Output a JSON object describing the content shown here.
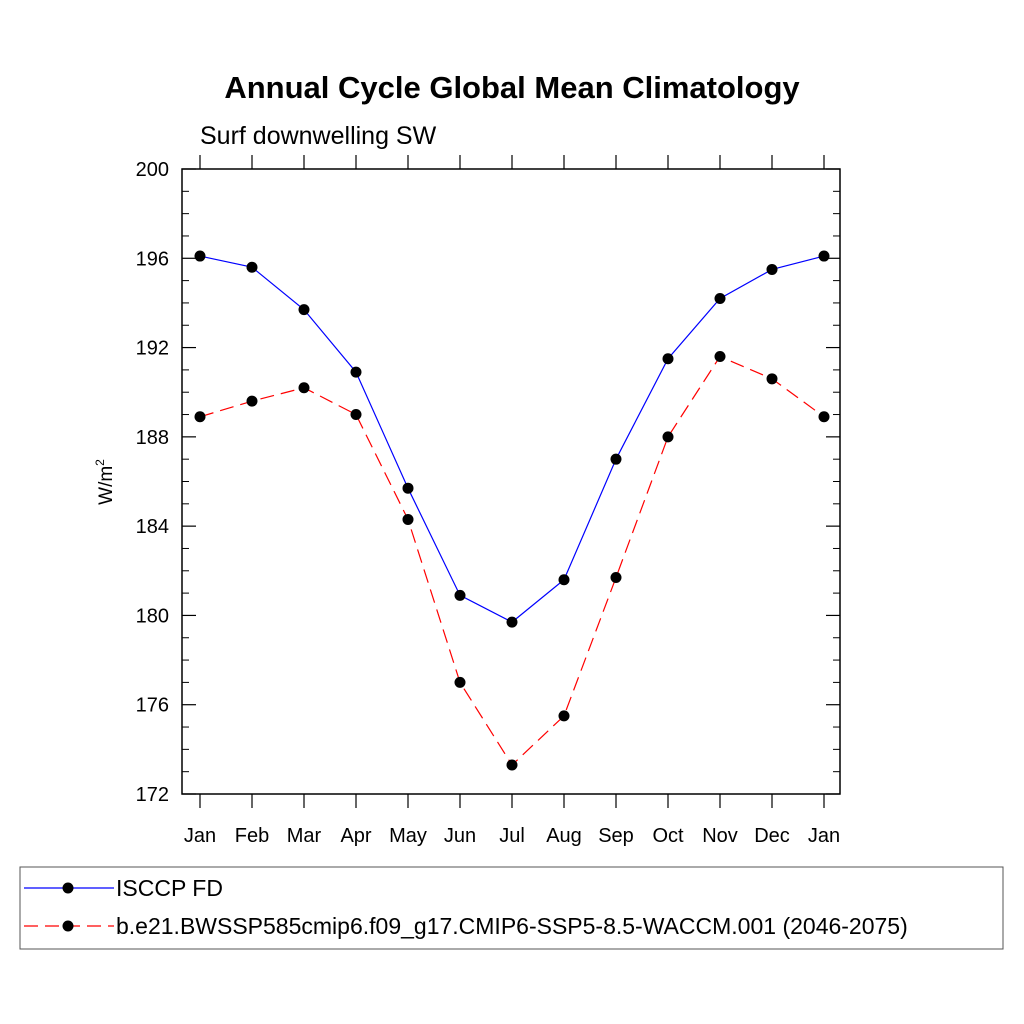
{
  "chart_data": {
    "type": "line",
    "title": "Annual Cycle Global Mean Climatology",
    "subtitle": "Surf downwelling SW",
    "ylabel_base": "W/m",
    "ylabel_sup": "2",
    "xlabel": "",
    "categories": [
      "Jan",
      "Feb",
      "Mar",
      "Apr",
      "May",
      "Jun",
      "Jul",
      "Aug",
      "Sep",
      "Oct",
      "Nov",
      "Dec",
      "Jan"
    ],
    "ylim": [
      172,
      200
    ],
    "yticks": [
      172,
      176,
      180,
      184,
      188,
      192,
      196,
      200
    ],
    "legend_position": "bottom",
    "series": [
      {
        "name": "ISCCP FD",
        "color": "#0000ff",
        "dash": "solid",
        "marker": "filled-circle",
        "values": [
          196.1,
          195.6,
          193.7,
          190.9,
          185.7,
          180.9,
          179.7,
          181.6,
          187.0,
          191.5,
          194.2,
          195.5,
          196.1
        ]
      },
      {
        "name": "b.e21.BWSSP585cmip6.f09_g17.CMIP6-SSP5-8.5-WACCM.001 (2046-2075)",
        "color": "#ff0000",
        "dash": "dashed",
        "marker": "filled-circle",
        "values": [
          188.9,
          189.6,
          190.2,
          189.0,
          184.3,
          177.0,
          173.3,
          175.5,
          181.7,
          188.0,
          191.6,
          190.6,
          188.9
        ]
      }
    ]
  }
}
